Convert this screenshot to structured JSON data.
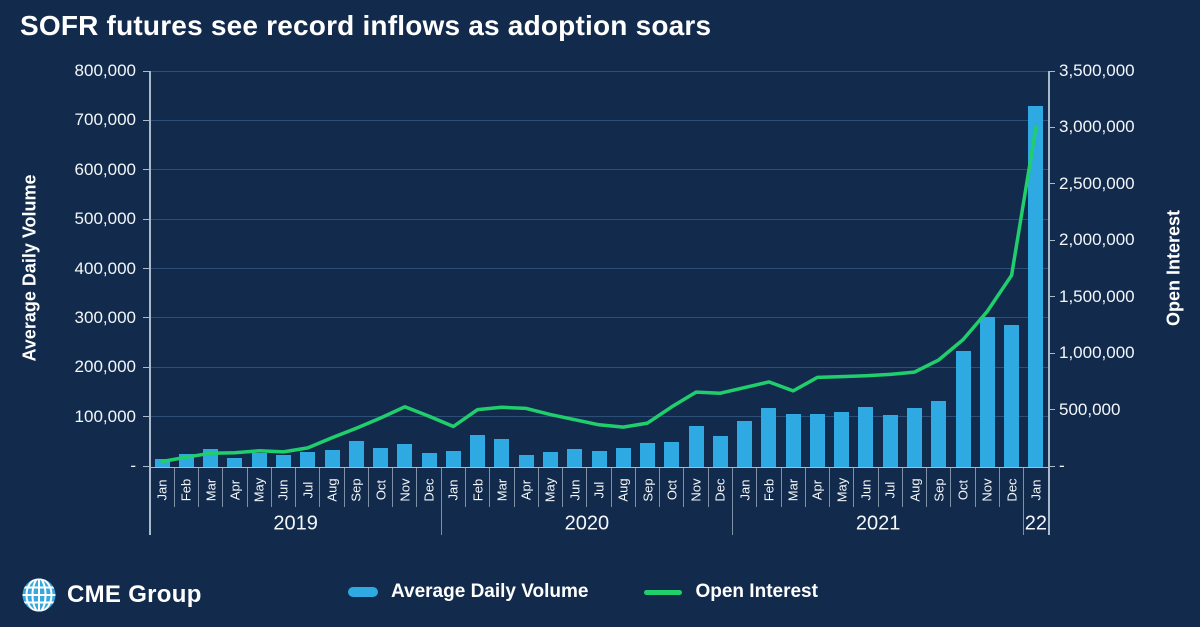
{
  "title": "SOFR futures see record inflows as adoption soars",
  "logo": {
    "text": "CME Group",
    "icon": "globe-grid-icon"
  },
  "legend": [
    {
      "label": "Average Daily Volume",
      "swatch": "bar",
      "color": "#2FA9E1"
    },
    {
      "label": "Open Interest",
      "swatch": "line",
      "color": "#20CF6C"
    }
  ],
  "colors": {
    "background": "#122B4D",
    "bar": "#2FA9E1",
    "line": "#20CF6C",
    "grid": "rgba(110,160,215,0.30)",
    "axis": "#A9BACB",
    "separator": "rgba(200,214,228,0.60)",
    "tick_text": "#F4F7FA"
  },
  "chart_data": {
    "type": "combo_bar_line",
    "grid": "horizontal",
    "legend_position": "bottom",
    "months": [
      "Jan",
      "Feb",
      "Mar",
      "Apr",
      "May",
      "Jun",
      "Jul",
      "Aug",
      "Sep",
      "Oct",
      "Nov",
      "Dec",
      "Jan",
      "Feb",
      "Mar",
      "Apr",
      "May",
      "Jun",
      "Jul",
      "Aug",
      "Sep",
      "Oct",
      "Nov",
      "Dec",
      "Jan",
      "Feb",
      "Mar",
      "Apr",
      "May",
      "Jun",
      "Jul",
      "Aug",
      "Sep",
      "Oct",
      "Nov",
      "Dec",
      "Jan"
    ],
    "year_groups": [
      {
        "label": "2019",
        "count": 12
      },
      {
        "label": "2020",
        "count": 12
      },
      {
        "label": "2021",
        "count": 12
      },
      {
        "label": "22",
        "count": 1
      }
    ],
    "left_axis": {
      "label": "Average Daily Volume",
      "min": 0,
      "max": 800000,
      "step": 100000,
      "tick_labels": [
        "800,000",
        "700,000",
        "600,000",
        "500,000",
        "400,000",
        "300,000",
        "200,000",
        "100,000",
        "-"
      ]
    },
    "right_axis": {
      "label": "Open Interest",
      "min": 0,
      "max": 3500000,
      "step": 500000,
      "tick_labels": [
        "3,500,000",
        "3,000,000",
        "2,500,000",
        "2,000,000",
        "1,500,000",
        "1,000,000",
        "500,000",
        "-"
      ]
    },
    "series": [
      {
        "name": "Average Daily Volume",
        "type": "bar",
        "axis": "left",
        "color": "#2FA9E1",
        "values": [
          14000,
          25000,
          35000,
          17000,
          27000,
          22000,
          29000,
          32000,
          50000,
          36000,
          44000,
          27000,
          30000,
          63000,
          54000,
          22000,
          28000,
          35000,
          30000,
          37000,
          47000,
          49000,
          81000,
          61000,
          91000,
          118000,
          106000,
          106000,
          109000,
          120000,
          104000,
          118000,
          131000,
          232000,
          301000,
          286000,
          730000
        ]
      },
      {
        "name": "Open Interest",
        "type": "line",
        "axis": "right",
        "color": "#20CF6C",
        "values": [
          40000,
          78000,
          113000,
          118000,
          135000,
          125000,
          160000,
          250000,
          335000,
          425000,
          525000,
          440000,
          350000,
          500000,
          520000,
          510000,
          455000,
          410000,
          365000,
          345000,
          380000,
          525000,
          655000,
          645000,
          695000,
          745000,
          665000,
          785000,
          792000,
          800000,
          812000,
          832000,
          940000,
          1120000,
          1370000,
          1690000,
          3000000
        ]
      }
    ]
  }
}
